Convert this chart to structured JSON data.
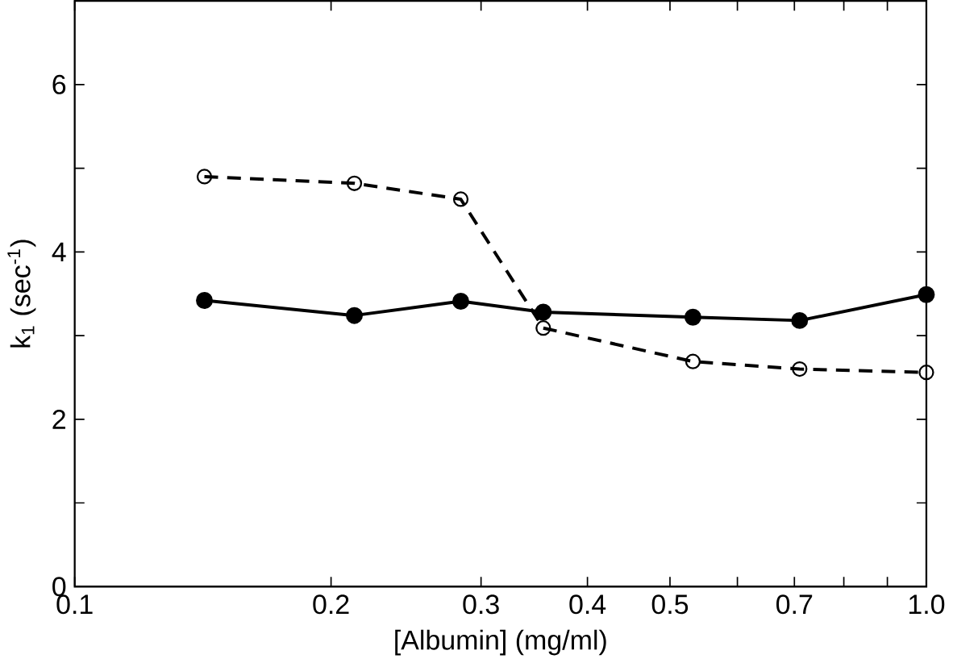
{
  "chart_data": {
    "type": "line",
    "xlabel": "[Albumin] (mg/ml)",
    "ylabel": "k$_{1}$ (sec$^{-1}$)",
    "log": "x",
    "xlim": [
      0.1,
      1.0
    ],
    "ylim": [
      0,
      7
    ],
    "xticks": [
      0.1,
      0.2,
      0.3,
      0.4,
      0.5,
      {
        "value": 0.6,
        "label": null
      },
      0.7,
      {
        "value": 0.8,
        "label": null
      },
      {
        "value": 0.9,
        "label": null
      },
      {
        "value": 1.0,
        "label": "1.0"
      }
    ],
    "yticks": [
      0,
      {
        "value": 1,
        "label": null
      },
      2,
      {
        "value": 3,
        "label": null
      },
      4,
      {
        "value": 5,
        "label": null
      },
      6
    ],
    "grid": false,
    "series": [
      {
        "color": "#000000",
        "marker": "circle",
        "line_style": "solid",
        "x": [
          0.142,
          0.213,
          0.284,
          0.355,
          0.532,
          0.71,
          1.0
        ],
        "values": [
          3.42,
          3.24,
          3.41,
          3.28,
          3.22,
          3.18,
          3.49
        ]
      },
      {
        "color": "#000000",
        "marker": "circle",
        "line_style": "dashed",
        "x": [
          0.142,
          0.213,
          0.284,
          0.355,
          0.532,
          0.71,
          1.0
        ],
        "values": [
          4.9,
          4.82,
          4.63,
          3.09,
          2.69,
          2.6,
          2.56
        ]
      }
    ]
  }
}
